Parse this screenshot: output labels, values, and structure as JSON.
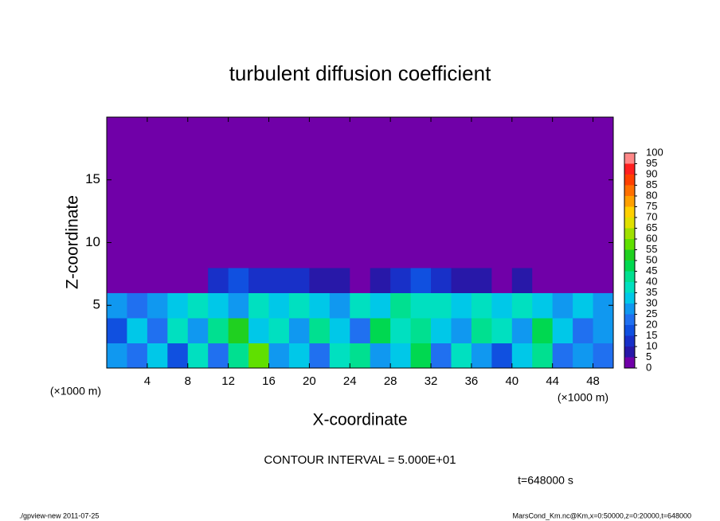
{
  "chart_data": {
    "type": "heatmap",
    "title": "turbulent diffusion coefficient",
    "xlabel": "X-coordinate",
    "ylabel": "Z-coordinate",
    "xunit": "(×1000 m)",
    "yunit": "(×1000 m)",
    "xlim": [
      0,
      50
    ],
    "ylim": [
      0,
      20
    ],
    "xticks": [
      4,
      8,
      12,
      16,
      20,
      24,
      28,
      32,
      36,
      40,
      44,
      48
    ],
    "yticks": [
      5,
      10,
      15
    ],
    "x": [
      1,
      3,
      5,
      7,
      9,
      11,
      13,
      15,
      17,
      19,
      21,
      23,
      25,
      27,
      29,
      31,
      33,
      35,
      37,
      39,
      41,
      43,
      45,
      47,
      49
    ],
    "y": [
      1,
      3,
      5,
      7,
      9,
      11,
      13,
      15,
      17,
      19
    ],
    "z": [
      [
        25,
        20,
        30,
        15,
        35,
        20,
        40,
        55,
        25,
        30,
        20,
        35,
        40,
        25,
        30,
        45,
        20,
        35,
        25,
        15,
        30,
        40,
        20,
        25,
        20
      ],
      [
        15,
        30,
        20,
        35,
        25,
        40,
        50,
        30,
        35,
        25,
        40,
        30,
        20,
        45,
        35,
        40,
        30,
        25,
        40,
        35,
        25,
        45,
        30,
        20,
        25
      ],
      [
        25,
        20,
        25,
        30,
        35,
        30,
        25,
        35,
        30,
        35,
        30,
        25,
        35,
        30,
        40,
        35,
        35,
        30,
        35,
        30,
        35,
        30,
        25,
        30,
        25
      ],
      [
        0,
        0,
        0,
        0,
        0,
        10,
        15,
        10,
        10,
        10,
        5,
        5,
        0,
        5,
        10,
        15,
        10,
        5,
        5,
        0,
        5,
        0,
        0,
        0,
        0
      ],
      [
        0,
        0,
        0,
        0,
        0,
        0,
        0,
        0,
        0,
        0,
        0,
        0,
        0,
        0,
        0,
        0,
        0,
        0,
        0,
        0,
        0,
        0,
        0,
        0,
        0
      ],
      [
        0,
        0,
        0,
        0,
        0,
        0,
        0,
        0,
        0,
        0,
        0,
        0,
        0,
        0,
        0,
        0,
        0,
        0,
        0,
        0,
        0,
        0,
        0,
        0,
        0
      ],
      [
        0,
        0,
        0,
        0,
        0,
        0,
        0,
        0,
        0,
        0,
        0,
        0,
        0,
        0,
        0,
        0,
        0,
        0,
        0,
        0,
        0,
        0,
        0,
        0,
        0
      ],
      [
        0,
        0,
        0,
        0,
        0,
        0,
        0,
        0,
        0,
        0,
        0,
        0,
        0,
        0,
        0,
        0,
        0,
        0,
        0,
        0,
        0,
        0,
        0,
        0,
        0
      ],
      [
        0,
        0,
        0,
        0,
        0,
        0,
        0,
        0,
        0,
        0,
        0,
        0,
        0,
        0,
        0,
        0,
        0,
        0,
        0,
        0,
        0,
        0,
        0,
        0,
        0
      ],
      [
        0,
        0,
        0,
        0,
        0,
        0,
        0,
        0,
        0,
        0,
        0,
        0,
        0,
        0,
        0,
        0,
        0,
        0,
        0,
        0,
        0,
        0,
        0,
        0,
        0
      ]
    ],
    "levels": [
      0,
      5,
      10,
      15,
      20,
      25,
      30,
      35,
      40,
      45,
      50,
      55,
      60,
      65,
      70,
      75,
      80,
      85,
      90,
      95,
      100
    ],
    "colors": [
      "#7000a8",
      "#2818a8",
      "#1830c8",
      "#1050e0",
      "#2070f0",
      "#1098f0",
      "#00c8e8",
      "#00e0c0",
      "#00e090",
      "#00d850",
      "#20d020",
      "#60e000",
      "#a0e000",
      "#e0e000",
      "#ffd000",
      "#ffa000",
      "#ff7000",
      "#ff4000",
      "#ff2020",
      "#ff8888"
    ],
    "contour_interval": "CONTOUR INTERVAL = 5.000E+01",
    "time_label": "t=648000 s",
    "footer_left": "./gpview-new  2011-07-25",
    "footer_right": "MarsCond_Km.nc@Km,x=0:50000,z=0:20000,t=648000"
  }
}
